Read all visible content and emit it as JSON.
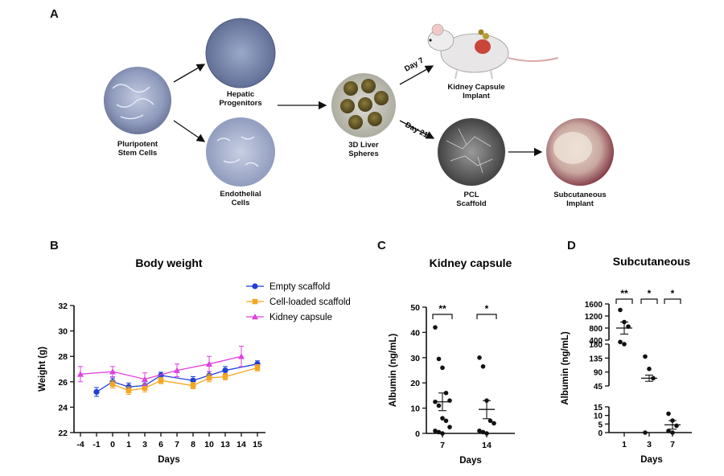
{
  "panels": {
    "a": "A",
    "b": "B",
    "c": "C",
    "d": "D"
  },
  "schematic": {
    "pluripotent": "Pluripotent\nStem Cells",
    "hepatic": "Hepatic\nProgenitors",
    "endothelial": "Endothelial\nCells",
    "spheres": "3D Liver\nSpheres",
    "kidney_implant": "Kidney Capsule\nImplant",
    "pcl": "PCL\nScaffold",
    "subcutaneous_implant": "Subcutaneous\nImplant",
    "day7": "Day 7",
    "day21": "Day 21"
  },
  "chart_data": [
    {
      "type": "line",
      "title": "Body weight",
      "xlabel": "Days",
      "ylabel": "Weight (g)",
      "ylim": [
        22,
        32
      ],
      "yticks": [
        22,
        24,
        26,
        28,
        30,
        32
      ],
      "categories": [
        "-4",
        "-1",
        "0",
        "1",
        "3",
        "6",
        "7",
        "8",
        "10",
        "13",
        "14",
        "15"
      ],
      "legend_position": "top-right",
      "series": [
        {
          "name": "Empty scaffold",
          "color": "#1f3fd6",
          "marker": "circle",
          "values": [
            null,
            25.2,
            26.0,
            25.6,
            25.7,
            26.5,
            null,
            26.1,
            26.5,
            26.9,
            null,
            27.4
          ],
          "errors": [
            null,
            0.35,
            0.3,
            0.3,
            0.3,
            0.25,
            null,
            0.3,
            0.3,
            0.3,
            null,
            0.25
          ]
        },
        {
          "name": "Cell-loaded scaffold",
          "color": "#f5a623",
          "marker": "square",
          "values": [
            null,
            null,
            25.8,
            25.3,
            25.5,
            26.1,
            null,
            25.7,
            26.3,
            26.4,
            null,
            27.1
          ],
          "errors": [
            null,
            null,
            0.3,
            0.3,
            0.3,
            0.25,
            null,
            0.25,
            0.3,
            0.25,
            null,
            0.25
          ]
        },
        {
          "name": "Kidney capsule",
          "color": "#e040e0",
          "marker": "triangle",
          "values": [
            26.6,
            null,
            26.8,
            null,
            26.2,
            null,
            26.9,
            null,
            27.4,
            null,
            28.0,
            null
          ],
          "errors": [
            0.6,
            null,
            0.4,
            null,
            0.5,
            null,
            0.5,
            null,
            0.6,
            null,
            0.8,
            null
          ]
        }
      ]
    },
    {
      "type": "scatter",
      "title": "Kidney capsule",
      "xlabel": "Days",
      "ylabel": "Albumin (ng/mL)",
      "ylim": [
        0,
        50
      ],
      "yticks": [
        0,
        10,
        20,
        30,
        40,
        50
      ],
      "categories": [
        "7",
        "14"
      ],
      "groups": [
        {
          "category": "7",
          "points": [
            42,
            29.5,
            26,
            16,
            13,
            12.5,
            11,
            6,
            5,
            2.5,
            1,
            0.5,
            0
          ],
          "mean": 12.5,
          "sem_low": 9,
          "sem_high": 16,
          "significance": "**"
        },
        {
          "category": "14",
          "points": [
            30,
            26.5,
            13,
            5,
            4,
            1,
            0.5,
            0
          ],
          "mean": 9.5,
          "sem_low": 5.8,
          "sem_high": 13,
          "significance": "*"
        }
      ]
    },
    {
      "type": "scatter",
      "title": "Subcutaneous",
      "xlabel": "Days",
      "ylabel": "Albumin (ng/mL)",
      "yticks": [
        "0",
        "5",
        "10",
        "15",
        "45",
        "90",
        "135",
        "180",
        "400",
        "800",
        "1200",
        "1600"
      ],
      "axis_breaks": true,
      "categories": [
        "1",
        "3",
        "7"
      ],
      "groups": [
        {
          "category": "1",
          "points": [
            1400,
            1000,
            850,
            300,
            180
          ],
          "mean": 800,
          "sem_low": 600,
          "sem_high": 1000,
          "significance": "**"
        },
        {
          "category": "3",
          "points": [
            140,
            100,
            70,
            0
          ],
          "mean": 70,
          "sem_low": 60,
          "sem_high": 80,
          "significance": "*"
        },
        {
          "category": "7",
          "points": [
            11,
            7,
            4,
            1,
            0
          ],
          "mean": 4.5,
          "sem_low": 2,
          "sem_high": 7,
          "significance": "*"
        }
      ]
    }
  ]
}
